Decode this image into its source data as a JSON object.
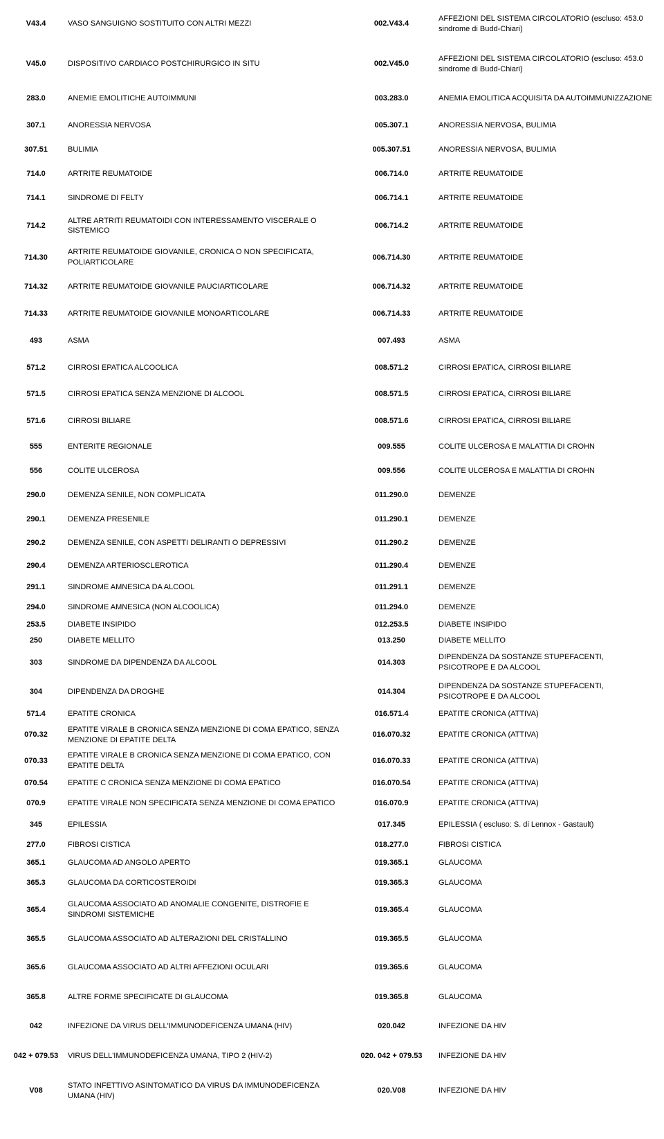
{
  "rows": [
    {
      "c1": "V43.4",
      "c2": "VASO SANGUIGNO SOSTITUITO CON ALTRI MEZZI",
      "c3": "002.V43.4",
      "c4": "AFFEZIONI DEL SISTEMA CIRCOLATORIO (escluso: 453.0 sindrome di Budd-Chiari)",
      "pad": 14
    },
    {
      "c1": "V45.0",
      "c2": "DISPOSITIVO CARDIACO POSTCHIRURGICO IN SITU",
      "c3": "002.V45.0",
      "c4": "AFFEZIONI DEL SISTEMA CIRCOLATORIO (escluso: 453.0 sindrome di Budd-Chiari)",
      "pad": 14
    },
    {
      "c1": "283.0",
      "c2": "ANEMIE EMOLITICHE  AUTOIMMUNI",
      "c3": "003.283.0",
      "c4": "ANEMIA EMOLITICA ACQUISITA DA AUTOIMMUNIZZAZIONE",
      "pad": 14
    },
    {
      "c1": "307.1",
      "c2": "ANORESSIA NERVOSA",
      "c3": "005.307.1",
      "c4": "ANORESSIA NERVOSA, BULIMIA",
      "pad": 10
    },
    {
      "c1": "307.51",
      "c2": "BULIMIA",
      "c3": "005.307.51",
      "c4": "ANORESSIA NERVOSA, BULIMIA",
      "pad": 10
    },
    {
      "c1": "714.0",
      "c2": "ARTRITE REUMATOIDE",
      "c3": "006.714.0",
      "c4": "ARTRITE REUMATOIDE",
      "pad": 10
    },
    {
      "c1": "714.1",
      "c2": "SINDROME DI FELTY",
      "c3": "006.714.1",
      "c4": "ARTRITE REUMATOIDE",
      "pad": 10
    },
    {
      "c1": "714.2",
      "c2": "ALTRE ARTRITI REUMATOIDI CON INTERESSAMENTO VISCERALE O SISTEMICO",
      "c3": "006.714.2",
      "c4": "ARTRITE REUMATOIDE",
      "pad": 8
    },
    {
      "c1": "714.30",
      "c2": "ARTRITE REUMATOIDE GIOVANILE, CRONICA O NON SPECIFICATA, POLIARTICOLARE",
      "c3": "006.714.30",
      "c4": "ARTRITE REUMATOIDE",
      "pad": 8
    },
    {
      "c1": "714.32",
      "c2": "ARTRITE REUMATOIDE GIOVANILE PAUCIARTICOLARE",
      "c3": "006.714.32",
      "c4": "ARTRITE REUMATOIDE",
      "pad": 12
    },
    {
      "c1": "714.33",
      "c2": "ARTRITE REUMATOIDE GIOVANILE MONOARTICOLARE",
      "c3": "006.714.33",
      "c4": "ARTRITE REUMATOIDE",
      "pad": 12
    },
    {
      "c1": "493",
      "c2": "ASMA",
      "c3": "007.493",
      "c4": "ASMA",
      "pad": 12
    },
    {
      "c1": "571.2",
      "c2": "CIRROSI EPATICA ALCOOLICA",
      "c3": "008.571.2",
      "c4": "CIRROSI  EPATICA, CIRROSI BILIARE",
      "pad": 12
    },
    {
      "c1": "571.5",
      "c2": "CIRROSI EPATICA SENZA MENZIONE DI ALCOOL",
      "c3": "008.571.5",
      "c4": "CIRROSI  EPATICA, CIRROSI BILIARE",
      "pad": 12
    },
    {
      "c1": "571.6",
      "c2": "CIRROSI BILIARE",
      "c3": "008.571.6",
      "c4": "CIRROSI  EPATICA, CIRROSI BILIARE",
      "pad": 12
    },
    {
      "c1": "555",
      "c2": "ENTERITE REGIONALE",
      "c3": "009.555",
      "c4": "COLITE ULCEROSA E MALATTIA DI CROHN",
      "pad": 10
    },
    {
      "c1": "556",
      "c2": "COLITE ULCEROSA",
      "c3": "009.556",
      "c4": "COLITE ULCEROSA E MALATTIA DI CROHN",
      "pad": 10
    },
    {
      "c1": "290.0",
      "c2": "DEMENZA SENILE, NON COMPLICATA",
      "c3": "011.290.0",
      "c4": "DEMENZE",
      "pad": 10
    },
    {
      "c1": "290.1",
      "c2": "DEMENZA PRESENILE",
      "c3": "011.290.1",
      "c4": "DEMENZE",
      "pad": 10
    },
    {
      "c1": "290.2",
      "c2": "DEMENZA SENILE, CON ASPETTI DELIRANTI O DEPRESSIVI",
      "c3": "011.290.2",
      "c4": "DEMENZE",
      "pad": 10
    },
    {
      "c1": "290.4",
      "c2": "DEMENZA ARTERIOSCLEROTICA",
      "c3": "011.290.4",
      "c4": "DEMENZE",
      "pad": 8
    },
    {
      "c1": "291.1",
      "c2": "SINDROME AMNESICA DA ALCOOL",
      "c3": "011.291.1",
      "c4": "DEMENZE",
      "pad": 8
    },
    {
      "c1": "294.0",
      "c2": "SINDROME AMNESICA (NON ALCOOLICA)",
      "c3": "011.294.0",
      "c4": "DEMENZE",
      "pad": 6
    },
    {
      "c1": "253.5",
      "c2": "DIABETE INSIPIDO",
      "c3": "012.253.5",
      "c4": "DIABETE INSIPIDO",
      "pad": 4
    },
    {
      "c1": "250",
      "c2": "DIABETE MELLITO",
      "c3": "013.250",
      "c4": "DIABETE MELLITO",
      "pad": 4
    },
    {
      "c1": "303",
      "c2": "SINDROME DA DIPENDENZA DA ALCOOL",
      "c3": "014.303",
      "c4": "DIPENDENZA DA SOSTANZE STUPEFACENTI, PSICOTROPE E DA ALCOOL",
      "pad": 6
    },
    {
      "c1": "304",
      "c2": "DIPENDENZA DA DROGHE",
      "c3": "014.304",
      "c4": "DIPENDENZA DA SOSTANZE STUPEFACENTI, PSICOTROPE E DA ALCOOL",
      "pad": 6
    },
    {
      "c1": "571.4",
      "c2": "EPATITE CRONICA",
      "c3": "016.571.4",
      "c4": "EPATITE CRONICA (ATTIVA)",
      "pad": 4
    },
    {
      "c1": "070.32",
      "c2": "EPATITE VIRALE B CRONICA  SENZA MENZIONE DI COMA EPATICO, SENZA MENZIONE DI EPATITE DELTA",
      "c3": "016.070.32",
      "c4": "EPATITE CRONICA (ATTIVA)",
      "pad": 4
    },
    {
      "c1": "070.33",
      "c2": "EPATITE VIRALE B CRONICA  SENZA MENZIONE DI COMA EPATICO, CON EPATITE DELTA",
      "c3": "016.070.33",
      "c4": "EPATITE CRONICA (ATTIVA)",
      "pad": 4
    },
    {
      "c1": "070.54",
      "c2": "EPATITE C CRONICA SENZA MENZIONE DI COMA EPATICO",
      "c3": "016.070.54",
      "c4": "EPATITE CRONICA (ATTIVA)",
      "pad": 6
    },
    {
      "c1": "070.9",
      "c2": "EPATITE VIRALE NON SPECIFICATA SENZA MENZIONE DI COMA EPATICO",
      "c3": "016.070.9",
      "c4": "EPATITE CRONICA (ATTIVA)",
      "pad": 8
    },
    {
      "c1": "345",
      "c2": "EPILESSIA",
      "c3": "017.345",
      "c4": "EPILESSIA ( escluso: S. di Lennox - Gastault)",
      "pad": 8
    },
    {
      "c1": "277.0",
      "c2": "FIBROSI CISTICA",
      "c3": "018.277.0",
      "c4": "FIBROSI CISTICA",
      "pad": 6
    },
    {
      "c1": "365.1",
      "c2": "GLAUCOMA AD ANGOLO APERTO",
      "c3": "019.365.1",
      "c4": "GLAUCOMA",
      "pad": 6
    },
    {
      "c1": "365.3",
      "c2": "GLAUCOMA DA CORTICOSTEROIDI",
      "c3": "019.365.3",
      "c4": "GLAUCOMA",
      "pad": 8
    },
    {
      "c1": "365.4",
      "c2": "GLAUCOMA ASSOCIATO AD ANOMALIE CONGENITE, DISTROFIE E SINDROMI SISTEMICHE",
      "c3": "019.365.4",
      "c4": "GLAUCOMA",
      "pad": 8
    },
    {
      "c1": "365.5",
      "c2": "GLAUCOMA ASSOCIATO AD ALTERAZIONI DEL CRISTALLINO",
      "c3": "019.365.5",
      "c4": "GLAUCOMA",
      "pad": 12
    },
    {
      "c1": "365.6",
      "c2": "GLAUCOMA ASSOCIATO AD ALTRI AFFEZIONI OCULARI",
      "c3": "019.365.6",
      "c4": "GLAUCOMA",
      "pad": 14
    },
    {
      "c1": "365.8",
      "c2": "ALTRE FORME SPECIFICATE DI GLAUCOMA",
      "c3": "019.365.8",
      "c4": "GLAUCOMA",
      "pad": 14
    },
    {
      "c1": "042",
      "c2": "INFEZIONE DA VIRUS DELL'IMMUNODEFICENZA UMANA (HIV)",
      "c3": "020.042",
      "c4": "INFEZIONE DA HIV",
      "pad": 14
    },
    {
      "c1": "042 + 079.53",
      "c2": "VIRUS DELL'IMMUNODEFICENZA UMANA, TIPO 2 (HIV-2)",
      "c3": "020. 042 + 079.53",
      "c4": "INFEZIONE DA HIV",
      "pad": 14
    },
    {
      "c1": "V08",
      "c2": "STATO INFETTIVO ASINTOMATICO  DA  VIRUS DA IMMUNODEFICENZA UMANA (HIV)",
      "c3": "020.V08",
      "c4": "INFEZIONE DA HIV",
      "pad": 14
    }
  ]
}
